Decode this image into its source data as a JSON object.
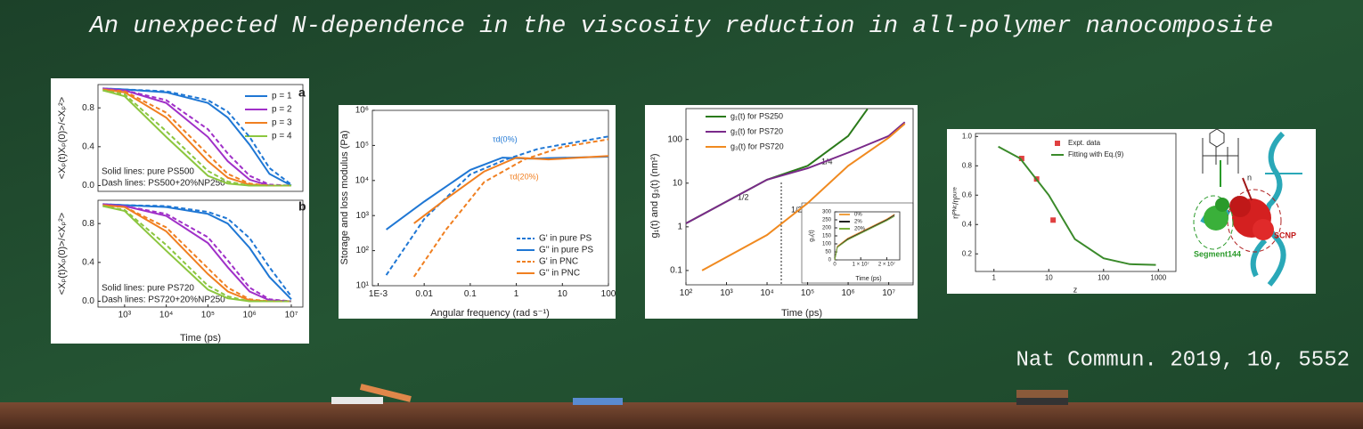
{
  "title": "An unexpected N-dependence in the viscosity reduction in all-polymer nanocomposite",
  "citation": "Nat Commun. 2019, 10, 5552",
  "illustration": {
    "labels": [
      "n",
      "SCNP",
      "Segment144"
    ]
  },
  "chart_data": [
    {
      "type": "line",
      "panel_label": "a",
      "xscale": "log",
      "xlim": [
        230,
        19000000
      ],
      "ylim": [
        -0.06,
        1.04
      ],
      "yticks": [
        {
          "value": 0,
          "label": "0.0"
        },
        0.4,
        0.8
      ],
      "y_label": "<Xₚ(t)Xₚ(0)>/<Xₚ²>",
      "notes": [
        "Solid lines: pure PS500",
        "Dash lines: PS500+20%NP250"
      ],
      "x": [
        300,
        1000,
        10000,
        100000,
        300000,
        1000000,
        3000000,
        10000000
      ],
      "series": [
        {
          "name": "p = 1",
          "color": "#1f77d4",
          "values": [
            1,
            0.99,
            0.96,
            0.85,
            0.7,
            0.42,
            0.12,
            0
          ]
        },
        {
          "name": "p = 2",
          "color": "#a030c8",
          "values": [
            1,
            0.98,
            0.85,
            0.5,
            0.25,
            0.06,
            0,
            0
          ]
        },
        {
          "name": "p = 3",
          "color": "#f07f20",
          "values": [
            0.99,
            0.96,
            0.7,
            0.25,
            0.08,
            0.01,
            0,
            0
          ]
        },
        {
          "name": "p = 4",
          "color": "#8cc63f",
          "values": [
            0.98,
            0.92,
            0.5,
            0.1,
            0.02,
            0,
            0,
            0
          ]
        },
        {
          "color": "#1f77d4",
          "dash": true,
          "values": [
            1,
            0.99,
            0.97,
            0.88,
            0.76,
            0.5,
            0.18,
            0.01
          ]
        },
        {
          "color": "#a030c8",
          "dash": true,
          "values": [
            1,
            0.98,
            0.88,
            0.58,
            0.33,
            0.1,
            0.01,
            0
          ]
        },
        {
          "color": "#f07f20",
          "dash": true,
          "values": [
            0.99,
            0.97,
            0.75,
            0.32,
            0.12,
            0.02,
            0,
            0
          ]
        },
        {
          "color": "#8cc63f",
          "dash": true,
          "values": [
            0.98,
            0.94,
            0.56,
            0.15,
            0.04,
            0,
            0,
            0
          ]
        }
      ]
    },
    {
      "type": "line",
      "panel_label": "b",
      "xscale": "log",
      "xlim": [
        230,
        19000000
      ],
      "ylim": [
        -0.06,
        1.04
      ],
      "xticks": [
        {
          "value": 1000,
          "label": "10³"
        },
        {
          "value": 10000,
          "label": "10⁴"
        },
        {
          "value": 100000,
          "label": "10⁵"
        },
        {
          "value": 1000000,
          "label": "10⁶"
        },
        {
          "value": 10000000,
          "label": "10⁷"
        }
      ],
      "yticks": [
        {
          "value": 0,
          "label": "0.0"
        },
        0.4,
        0.8
      ],
      "x_label": "Time (ps)",
      "y_label": "<Xₚ(t)Xₚ(0)>/<Xₚ²>",
      "notes": [
        "Solid lines: pure PS720",
        "Dash lines: PS720+20%NP250"
      ],
      "x": [
        300,
        1000,
        10000,
        100000,
        300000,
        1000000,
        3000000,
        10000000
      ],
      "series": [
        {
          "color": "#1f77d4",
          "values": [
            1,
            0.99,
            0.97,
            0.9,
            0.8,
            0.55,
            0.25,
            0.02
          ]
        },
        {
          "color": "#a030c8",
          "values": [
            1,
            0.98,
            0.88,
            0.6,
            0.35,
            0.1,
            0.01,
            0
          ]
        },
        {
          "color": "#f07f20",
          "values": [
            0.99,
            0.97,
            0.72,
            0.28,
            0.1,
            0.01,
            0,
            0
          ]
        },
        {
          "color": "#8cc63f",
          "values": [
            0.98,
            0.93,
            0.52,
            0.12,
            0.03,
            0,
            0,
            0
          ]
        },
        {
          "color": "#1f77d4",
          "dash": true,
          "values": [
            1,
            0.99,
            0.98,
            0.92,
            0.85,
            0.65,
            0.35,
            0.05
          ]
        },
        {
          "color": "#a030c8",
          "dash": true,
          "values": [
            1,
            0.98,
            0.9,
            0.66,
            0.42,
            0.14,
            0.02,
            0
          ]
        },
        {
          "color": "#f07f20",
          "dash": true,
          "values": [
            0.99,
            0.97,
            0.76,
            0.34,
            0.14,
            0.02,
            0,
            0
          ]
        },
        {
          "color": "#8cc63f",
          "dash": true,
          "values": [
            0.98,
            0.94,
            0.58,
            0.16,
            0.05,
            0,
            0,
            0
          ]
        }
      ]
    },
    {
      "type": "line",
      "xscale": "log",
      "yscale": "log",
      "xlim": [
        0.00075,
        100
      ],
      "ylim": [
        10,
        1000000
      ],
      "xticks": [
        {
          "value": 0.001,
          "label": "1E-3"
        },
        0.01,
        0.1,
        1,
        10,
        100
      ],
      "yticks": [
        {
          "value": 10,
          "label": "10¹"
        },
        {
          "value": 100,
          "label": "10²"
        },
        {
          "value": 1000,
          "label": "10³"
        },
        {
          "value": 10000,
          "label": "10⁴"
        },
        {
          "value": 100000,
          "label": "10⁵"
        },
        {
          "value": 1000000,
          "label": "10⁶"
        }
      ],
      "x_label": "Angular frequency (rad s⁻¹)",
      "y_label": "Storage and loss modulus (Pa)",
      "annotations": [
        "τd(0%)",
        "τd(20%)"
      ],
      "series": [
        {
          "name": "G' in pure PS",
          "color": "#1f77d4",
          "dash": true,
          "x": [
            0.0015,
            0.01,
            0.1,
            0.6,
            3,
            100
          ],
          "values": [
            20,
            800,
            15000,
            40000,
            80000,
            180000
          ]
        },
        {
          "name": "G'' in pure PS",
          "color": "#1f77d4",
          "x": [
            0.0015,
            0.01,
            0.1,
            0.5,
            2,
            100
          ],
          "values": [
            400,
            2500,
            20000,
            45000,
            42000,
            48000
          ]
        },
        {
          "name": "G' in PNC",
          "color": "#f07f20",
          "dash": true,
          "x": [
            0.006,
            0.03,
            0.2,
            1.5,
            10,
            100
          ],
          "values": [
            18,
            400,
            9000,
            40000,
            90000,
            150000
          ]
        },
        {
          "name": "G'' in PNC",
          "color": "#f07f20",
          "x": [
            0.006,
            0.03,
            0.2,
            1,
            5,
            100
          ],
          "values": [
            600,
            3000,
            18000,
            45000,
            40000,
            50000
          ]
        }
      ]
    },
    {
      "type": "line",
      "xscale": "log",
      "yscale": "log",
      "xlim": [
        100,
        40000000
      ],
      "ylim": [
        0.047,
        510
      ],
      "xticks": [
        {
          "value": 100,
          "label": "10²"
        },
        {
          "value": 1000,
          "label": "10³"
        },
        {
          "value": 10000,
          "label": "10⁴"
        },
        {
          "value": 100000,
          "label": "10⁵"
        },
        {
          "value": 1000000,
          "label": "10⁶"
        },
        {
          "value": 10000000,
          "label": "10⁷"
        }
      ],
      "yticks": [
        0.1,
        1,
        10,
        100
      ],
      "x_label": "Time (ps)",
      "y_label": "g₁(t) and g₃(t) (nm²)",
      "annotations": [
        "1/2",
        "1/4",
        "1/2"
      ],
      "series": [
        {
          "name": "g₁(t) for PS250",
          "color": "#2a7a1a",
          "x": [
            100,
            10000,
            100000,
            1000000,
            3000000
          ],
          "values": [
            1.2,
            12,
            25,
            120,
            500
          ]
        },
        {
          "name": "g₁(t) for PS720",
          "color": "#7a2a8a",
          "x": [
            100,
            10000,
            100000,
            1000000,
            10000000,
            25000000
          ],
          "values": [
            1.2,
            12,
            22,
            50,
            120,
            250
          ]
        },
        {
          "name": "g₃(t) for PS720",
          "color": "#f08a20",
          "x": [
            250,
            10000,
            100000,
            1000000,
            10000000,
            25000000
          ],
          "values": [
            0.1,
            0.65,
            3.5,
            25,
            110,
            230
          ]
        }
      ]
    },
    {
      "type": "line",
      "inset": true,
      "xlim": [
        0,
        25000000
      ],
      "ylim": [
        0,
        300
      ],
      "xticks": [
        0,
        {
          "value": 10000000,
          "label": "1 × 10⁷"
        },
        {
          "value": 20000000,
          "label": "2 × 10⁷"
        }
      ],
      "yticks": [
        0,
        50,
        100,
        150,
        200,
        250,
        300
      ],
      "x_label": "Time (ps)",
      "y_label": "g₃(t)",
      "series": [
        {
          "name": "0%",
          "color": "#f0a040",
          "x": [
            0,
            1000000,
            5000000,
            10000000,
            20000000,
            23000000
          ],
          "values": [
            0,
            85,
            135,
            175,
            255,
            285
          ]
        },
        {
          "name": "2%",
          "color": "#222222",
          "x": [
            0,
            1000000,
            5000000,
            10000000,
            20000000,
            23000000
          ],
          "values": [
            0,
            80,
            130,
            170,
            250,
            280
          ]
        },
        {
          "name": "20%",
          "color": "#7ab040",
          "x": [
            0,
            1000000,
            5000000,
            10000000,
            20000000,
            23000000
          ],
          "values": [
            0,
            78,
            125,
            165,
            245,
            272
          ]
        }
      ]
    },
    {
      "type": "line",
      "xscale": "log",
      "xlim": [
        0.46,
        2090
      ],
      "ylim": [
        0.08,
        1.02
      ],
      "xticks": [
        1,
        10,
        100,
        1000
      ],
      "yticks": [
        0.2,
        0.4,
        0.6,
        0.8,
        {
          "value": 1,
          "label": "1.0"
        }
      ],
      "x_label": "z",
      "y_label": "ηᴾᴺᶜ/ηᵖᵘʳᵉ",
      "series": [
        {
          "name": "Expt. data",
          "color": "#e04040",
          "marker": "square",
          "x": [
            3.2,
            6,
            12
          ],
          "values": [
            0.85,
            0.71,
            0.43
          ]
        },
        {
          "name": "Fitting with Eq.(9)",
          "color": "#3a8a2a",
          "x": [
            1.2,
            3,
            10,
            30,
            100,
            300,
            900
          ],
          "values": [
            0.93,
            0.85,
            0.6,
            0.3,
            0.17,
            0.13,
            0.125
          ]
        }
      ]
    }
  ]
}
